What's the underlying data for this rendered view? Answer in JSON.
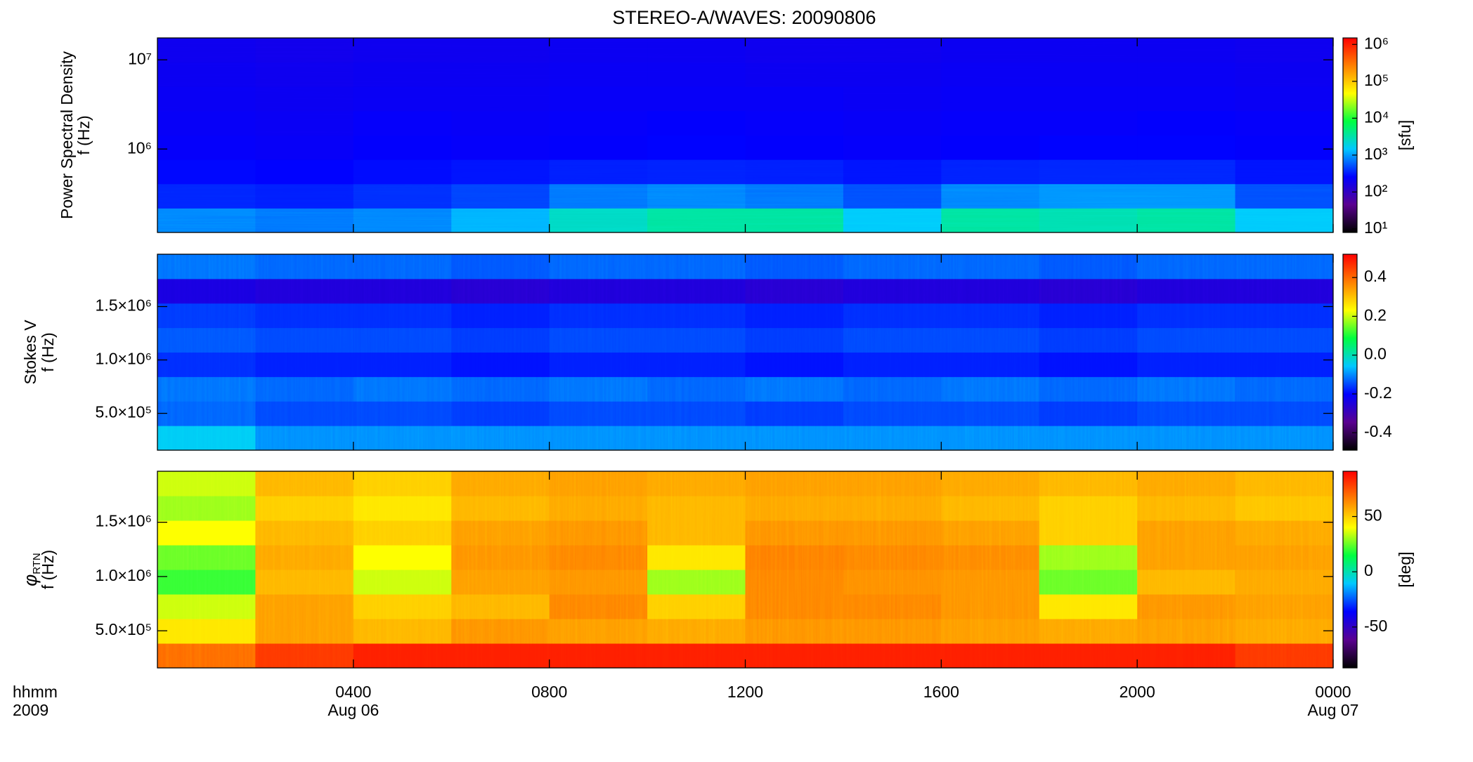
{
  "chart_data": [
    {
      "type": "heatmap",
      "title": "STEREO-A/WAVES: 20090806",
      "ylabel": "Power Spectral Density",
      "ylabel2": "f (Hz)",
      "xlim": [
        0,
        24
      ],
      "ylim": [
        116000,
        17600000
      ],
      "ylog": true,
      "yticks": [
        {
          "value": 1000000,
          "label": "10⁶"
        },
        {
          "value": 10000000,
          "label": "10⁷"
        }
      ],
      "colorbar": {
        "lim": [
          8,
          1500000
        ],
        "log": true,
        "label": "[sfu]",
        "ticks": [
          {
            "value": 10,
            "label": "10¹"
          },
          {
            "value": 100,
            "label": "10²"
          },
          {
            "value": 1000,
            "label": "10³"
          },
          {
            "value": 10000,
            "label": "10⁴"
          },
          {
            "value": 100000,
            "label": "10⁵"
          },
          {
            "value": 1000000,
            "label": "10⁶"
          }
        ]
      },
      "z": [
        [
          800,
          700,
          800,
          1200,
          2500,
          3500,
          3500,
          1500,
          3500,
          3000,
          3500,
          1500
        ],
        [
          350,
          330,
          380,
          450,
          700,
          800,
          700,
          500,
          800,
          900,
          900,
          500
        ],
        [
          270,
          260,
          280,
          300,
          330,
          340,
          330,
          300,
          340,
          350,
          350,
          300
        ],
        [
          240,
          230,
          250,
          240,
          250,
          260,
          250,
          240,
          250,
          260,
          260,
          250
        ],
        [
          230,
          220,
          240,
          230,
          240,
          250,
          240,
          230,
          240,
          240,
          250,
          240
        ],
        [
          220,
          210,
          220,
          220,
          230,
          230,
          230,
          220,
          230,
          230,
          230,
          220
        ],
        [
          210,
          200,
          210,
          210,
          220,
          220,
          210,
          210,
          220,
          220,
          220,
          210
        ],
        [
          200,
          190,
          200,
          200,
          210,
          210,
          200,
          200,
          210,
          210,
          210,
          200
        ]
      ]
    },
    {
      "type": "heatmap",
      "ylabel": "Stokes V",
      "ylabel2": "f (Hz)",
      "xlim": [
        0,
        24
      ],
      "ylim": [
        155000,
        1990000
      ],
      "ylog": false,
      "yticks": [
        {
          "value": 500000,
          "label": "5.0×10⁵"
        },
        {
          "value": 1000000,
          "label": "1.0×10⁶"
        },
        {
          "value": 1500000,
          "label": "1.5×10⁶"
        }
      ],
      "colorbar": {
        "lim": [
          -0.49,
          0.52
        ],
        "log": false,
        "ticks": [
          -0.4,
          -0.2,
          {
            "value": 0,
            "label": "0.0"
          },
          0.2,
          0.4
        ]
      },
      "z": [
        [
          -0.05,
          -0.1,
          -0.1,
          -0.1,
          -0.1,
          -0.1,
          -0.1,
          -0.1,
          -0.1,
          -0.1,
          -0.1,
          -0.1
        ],
        [
          -0.13,
          -0.15,
          -0.15,
          -0.16,
          -0.15,
          -0.15,
          -0.16,
          -0.15,
          -0.15,
          -0.16,
          -0.15,
          -0.15
        ],
        [
          -0.12,
          -0.13,
          -0.12,
          -0.13,
          -0.12,
          -0.13,
          -0.12,
          -0.13,
          -0.12,
          -0.13,
          -0.12,
          -0.13
        ],
        [
          -0.17,
          -0.18,
          -0.18,
          -0.19,
          -0.18,
          -0.18,
          -0.19,
          -0.18,
          -0.18,
          -0.19,
          -0.18,
          -0.18
        ],
        [
          -0.14,
          -0.15,
          -0.15,
          -0.16,
          -0.15,
          -0.15,
          -0.16,
          -0.15,
          -0.15,
          -0.16,
          -0.15,
          -0.15
        ],
        [
          -0.16,
          -0.17,
          -0.17,
          -0.18,
          -0.17,
          -0.17,
          -0.18,
          -0.17,
          -0.17,
          -0.18,
          -0.17,
          -0.17
        ],
        [
          -0.24,
          -0.25,
          -0.25,
          -0.26,
          -0.25,
          -0.25,
          -0.26,
          -0.25,
          -0.25,
          -0.26,
          -0.25,
          -0.25
        ],
        [
          -0.12,
          -0.13,
          -0.13,
          -0.14,
          -0.13,
          -0.13,
          -0.14,
          -0.13,
          -0.13,
          -0.14,
          -0.13,
          -0.13
        ]
      ]
    },
    {
      "type": "heatmap",
      "ylabel_symbol": "φ",
      "ylabel_subscript": "RTN",
      "ylabel2": "f (Hz)",
      "xlim": [
        0,
        24
      ],
      "ylim": [
        158000,
        1970000
      ],
      "ylog": false,
      "yticks": [
        {
          "value": 500000,
          "label": "5.0×10⁵"
        },
        {
          "value": 1000000,
          "label": "1.0×10⁶"
        },
        {
          "value": 1500000,
          "label": "1.5×10⁶"
        }
      ],
      "xticks": [
        {
          "value": 4,
          "label": "0400"
        },
        {
          "value": 8,
          "label": "0800"
        },
        {
          "value": 12,
          "label": "1200"
        },
        {
          "value": 16,
          "label": "1600"
        },
        {
          "value": 20,
          "label": "2000"
        },
        {
          "value": 24,
          "label": "0000"
        }
      ],
      "xlabel": "hhmm",
      "year_label": "2009",
      "date_labels": [
        {
          "x": 4,
          "label": "Aug 06"
        },
        {
          "x": 24,
          "label": "Aug 07"
        }
      ],
      "colorbar": {
        "lim": [
          -87,
          91
        ],
        "log": false,
        "label": "[deg]",
        "ticks": [
          -50,
          0,
          50
        ]
      },
      "z": [
        [
          70,
          80,
          85,
          85,
          85,
          85,
          85,
          85,
          85,
          85,
          85,
          80
        ],
        [
          45,
          60,
          55,
          62,
          60,
          58,
          62,
          62,
          60,
          58,
          60,
          58
        ],
        [
          35,
          60,
          50,
          55,
          65,
          50,
          65,
          65,
          62,
          45,
          62,
          60
        ],
        [
          20,
          55,
          35,
          60,
          62,
          30,
          65,
          63,
          62,
          25,
          55,
          58
        ],
        [
          25,
          58,
          40,
          62,
          65,
          45,
          66,
          65,
          64,
          30,
          60,
          60
        ],
        [
          40,
          55,
          50,
          60,
          62,
          55,
          62,
          62,
          60,
          50,
          60,
          58
        ],
        [
          30,
          50,
          45,
          55,
          58,
          55,
          58,
          58,
          55,
          50,
          55,
          52
        ],
        [
          35,
          55,
          50,
          58,
          60,
          58,
          60,
          60,
          58,
          55,
          58,
          55
        ]
      ]
    }
  ],
  "colormap": [
    "#000000",
    "#5a0090",
    "#0000ff",
    "#00c8ff",
    "#00ff40",
    "#ffff00",
    "#ff8000",
    "#ff0000"
  ]
}
